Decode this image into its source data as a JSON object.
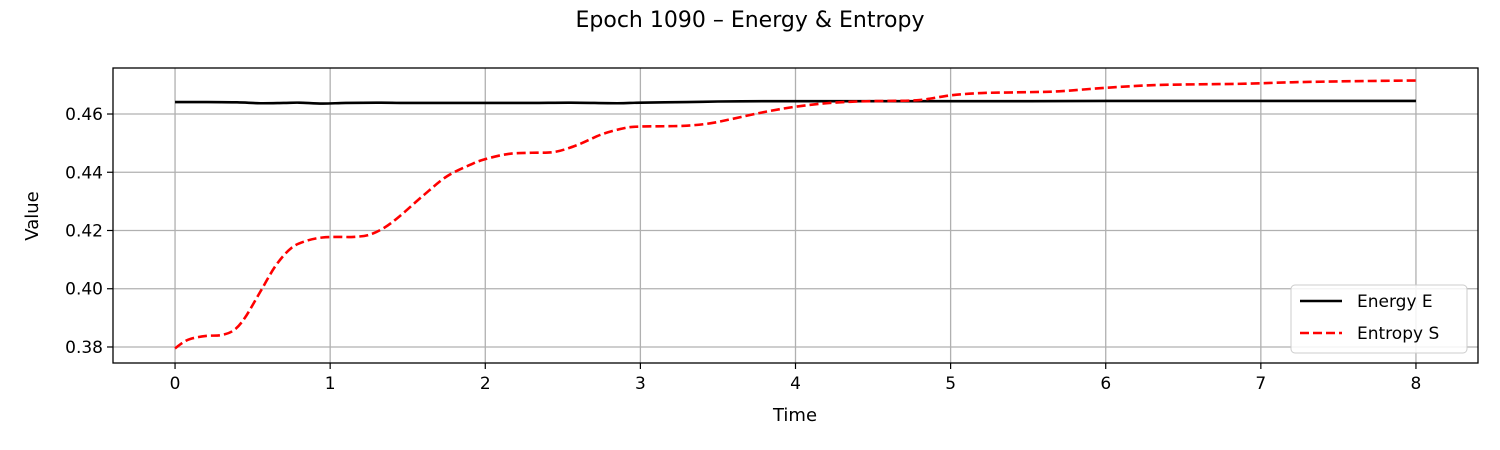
{
  "chart_data": {
    "type": "line",
    "title": "Epoch 1090 – Energy & Entropy",
    "xlabel": "Time",
    "ylabel": "Value",
    "xlim": [
      -0.4,
      8.4
    ],
    "ylim": [
      0.3745,
      0.4758
    ],
    "xticks": [
      0,
      1,
      2,
      3,
      4,
      5,
      6,
      7,
      8
    ],
    "xtick_labels": [
      "0",
      "1",
      "2",
      "3",
      "4",
      "5",
      "6",
      "7",
      "8"
    ],
    "yticks": [
      0.38,
      0.4,
      0.42,
      0.44,
      0.46
    ],
    "ytick_labels": [
      "0.38",
      "0.40",
      "0.42",
      "0.44",
      "0.46"
    ],
    "grid": true,
    "legend_position": "lower-right",
    "series": [
      {
        "name": "Energy E",
        "color": "#000000",
        "line_style": "solid",
        "x": [
          0,
          0.2,
          0.4,
          0.55,
          0.7,
          0.8,
          0.95,
          1.1,
          1.3,
          1.5,
          1.8,
          2.0,
          2.3,
          2.55,
          2.85,
          3.0,
          3.3,
          3.5,
          3.8,
          4.0,
          4.5,
          5.0,
          5.5,
          6.0,
          6.5,
          7.0,
          7.5,
          8.0
        ],
        "y": [
          0.4641,
          0.4641,
          0.464,
          0.4637,
          0.4638,
          0.4639,
          0.4636,
          0.4638,
          0.4639,
          0.4638,
          0.4638,
          0.4638,
          0.4638,
          0.4639,
          0.4637,
          0.4639,
          0.4641,
          0.4643,
          0.4644,
          0.4644,
          0.4644,
          0.4644,
          0.4644,
          0.4645,
          0.4645,
          0.4645,
          0.4645,
          0.4645
        ]
      },
      {
        "name": "Entropy S",
        "color": "#ff0000",
        "line_style": "dashed",
        "x": [
          0,
          0.05,
          0.1,
          0.2,
          0.3,
          0.38,
          0.45,
          0.55,
          0.65,
          0.75,
          0.85,
          0.95,
          1.05,
          1.15,
          1.25,
          1.35,
          1.45,
          1.6,
          1.75,
          1.9,
          2.0,
          2.15,
          2.3,
          2.45,
          2.6,
          2.75,
          2.9,
          3.0,
          3.15,
          3.3,
          3.45,
          3.6,
          3.8,
          4.0,
          4.2,
          4.4,
          4.6,
          4.8,
          5.0,
          5.2,
          5.5,
          5.7,
          6.0,
          6.3,
          6.6,
          6.9,
          7.2,
          7.5,
          7.8,
          8.0
        ],
        "y": [
          0.3795,
          0.3815,
          0.3828,
          0.3838,
          0.3841,
          0.3858,
          0.39,
          0.399,
          0.408,
          0.414,
          0.4165,
          0.4176,
          0.4178,
          0.4178,
          0.4185,
          0.421,
          0.425,
          0.432,
          0.4385,
          0.4425,
          0.4445,
          0.4463,
          0.4467,
          0.447,
          0.4495,
          0.453,
          0.4552,
          0.4557,
          0.4558,
          0.456,
          0.4568,
          0.4584,
          0.4607,
          0.4625,
          0.4637,
          0.4643,
          0.4645,
          0.4648,
          0.4664,
          0.4672,
          0.4675,
          0.4678,
          0.469,
          0.4699,
          0.4702,
          0.4704,
          0.4709,
          0.4712,
          0.4714,
          0.4715
        ]
      }
    ]
  }
}
